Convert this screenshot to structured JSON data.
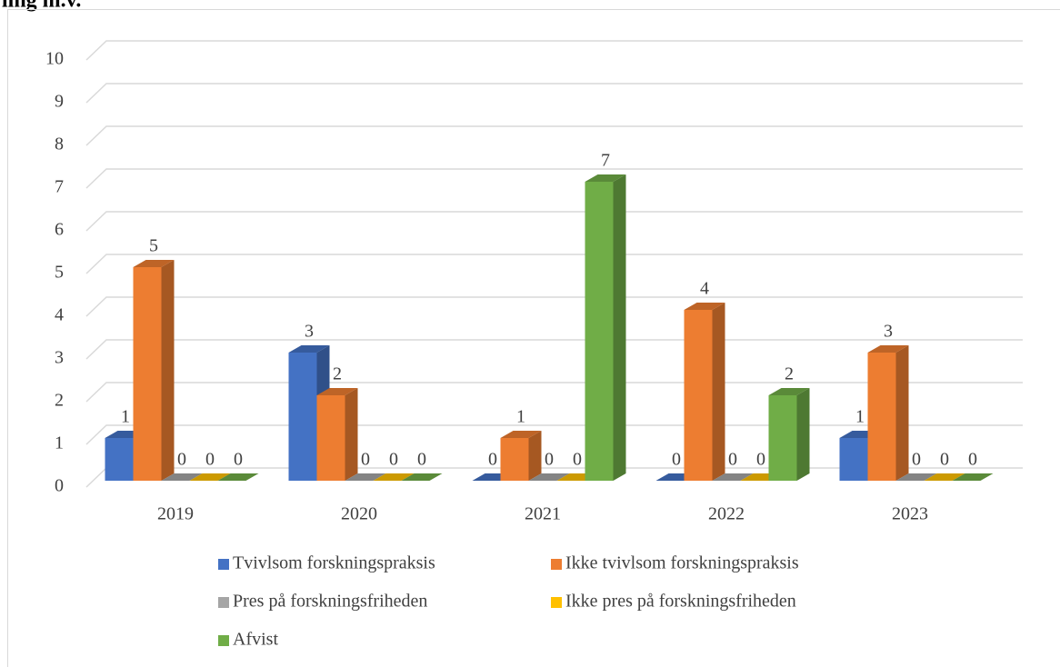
{
  "chart_data": {
    "type": "bar3d",
    "title": "ling m.v.",
    "categories": [
      "2019",
      "2020",
      "2021",
      "2022",
      "2023"
    ],
    "series": [
      {
        "name": "Tvivlsom forskningspraksis",
        "color": "#4472c4",
        "values": [
          1,
          3,
          0,
          0,
          1
        ]
      },
      {
        "name": "Ikke tvivlsom forskningspraksis",
        "color": "#ed7d31",
        "values": [
          5,
          2,
          1,
          4,
          3
        ]
      },
      {
        "name": "Pres på forskningsfriheden",
        "color": "#a5a5a5",
        "values": [
          0,
          0,
          0,
          0,
          0
        ]
      },
      {
        "name": "Ikke pres på forskningsfriheden",
        "color": "#ffc000",
        "values": [
          0,
          0,
          0,
          0,
          0
        ]
      },
      {
        "name": "Afvist",
        "color": "#70ad47",
        "values": [
          0,
          0,
          7,
          2,
          0
        ]
      }
    ],
    "ylim": [
      0,
      10
    ],
    "yticks": [
      0,
      1,
      2,
      3,
      4,
      5,
      6,
      7,
      8,
      9,
      10
    ],
    "grid": true,
    "data_labels": true,
    "legend": "bottom"
  }
}
